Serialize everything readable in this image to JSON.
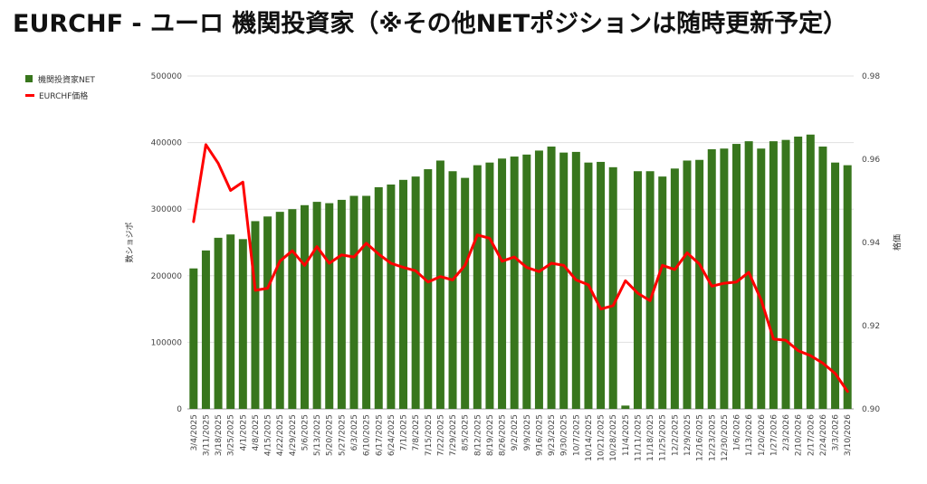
{
  "chart_data": {
    "type": "bar",
    "title": "EURCHF - ユーロ 機関投資家（※その他NETポジションは随時更新予定）",
    "ylabel_left": "数ショジポ",
    "ylabel_right": "格価",
    "y_left_range": [
      0,
      500000
    ],
    "y_left_ticks": [
      "0",
      "100000",
      "200000",
      "300000",
      "400000",
      "500000"
    ],
    "y_right_range": [
      0.9,
      0.98
    ],
    "y_right_ticks": [
      "0.90",
      "0.92",
      "0.94",
      "0.96",
      "0.98"
    ],
    "grid": true,
    "legend_position": "left",
    "categories": [
      "3/4/2025",
      "3/11/2025",
      "3/18/2025",
      "3/25/2025",
      "4/1/2025",
      "4/8/2025",
      "4/15/2025",
      "4/22/2025",
      "4/29/2025",
      "5/6/2025",
      "5/13/2025",
      "5/20/2025",
      "5/27/2025",
      "6/3/2025",
      "6/10/2025",
      "6/17/2025",
      "6/24/2025",
      "7/1/2025",
      "7/8/2025",
      "7/15/2025",
      "7/22/2025",
      "7/29/2025",
      "8/5/2025",
      "8/12/2025",
      "8/19/2025",
      "8/26/2025",
      "9/2/2025",
      "9/9/2025",
      "9/16/2025",
      "9/23/2025",
      "9/30/2025",
      "10/7/2025",
      "10/14/2025",
      "10/21/2025",
      "10/28/2025",
      "11/4/2025",
      "11/11/2025",
      "11/18/2025",
      "11/25/2025",
      "12/2/2025",
      "12/9/2025",
      "12/16/2025",
      "12/23/2025",
      "12/30/2025",
      "1/6/2026",
      "1/13/2026",
      "1/20/2026",
      "1/27/2026",
      "2/3/2026",
      "2/10/2026",
      "2/17/2026",
      "2/24/2026",
      "3/3/2026",
      "3/10/2026"
    ],
    "series": [
      {
        "name": "機関投資家NET",
        "kind": "bar",
        "axis": "left",
        "color": "#38761d",
        "values": [
          211000,
          238000,
          257000,
          262000,
          255000,
          282000,
          289000,
          296000,
          300000,
          306000,
          311000,
          309000,
          314000,
          320000,
          320000,
          333000,
          337000,
          344000,
          349000,
          360000,
          373000,
          357000,
          347000,
          366000,
          370000,
          376000,
          379000,
          382000,
          388000,
          394000,
          385000,
          386000,
          370000,
          371000,
          363000,
          5000,
          357000,
          357000,
          349000,
          361000,
          373000,
          374000,
          390000,
          391000,
          398000,
          402000,
          391000,
          402000,
          404000,
          409000,
          412000,
          394000,
          370000,
          366000
        ]
      },
      {
        "name": "EURCHF価格",
        "kind": "line",
        "axis": "right",
        "color": "#ff0000",
        "values": [
          0.945,
          0.9635,
          0.959,
          0.9525,
          0.9545,
          0.9285,
          0.929,
          0.9355,
          0.938,
          0.9345,
          0.939,
          0.935,
          0.937,
          0.9365,
          0.9398,
          0.9372,
          0.935,
          0.934,
          0.9332,
          0.9305,
          0.9318,
          0.931,
          0.9345,
          0.9418,
          0.941,
          0.9355,
          0.9365,
          0.934,
          0.933,
          0.935,
          0.9345,
          0.931,
          0.9298,
          0.924,
          0.9248,
          0.9308,
          0.9278,
          0.926,
          0.9345,
          0.9335,
          0.9375,
          0.9348,
          0.9295,
          0.9302,
          0.9305,
          0.9328,
          0.9262,
          0.9168,
          0.9165,
          0.914,
          0.9128,
          0.911,
          0.9085,
          0.9042
        ]
      }
    ]
  },
  "colors": {
    "bar": "#38761d",
    "line": "#ff0000",
    "grid": "#e0e0e0"
  }
}
